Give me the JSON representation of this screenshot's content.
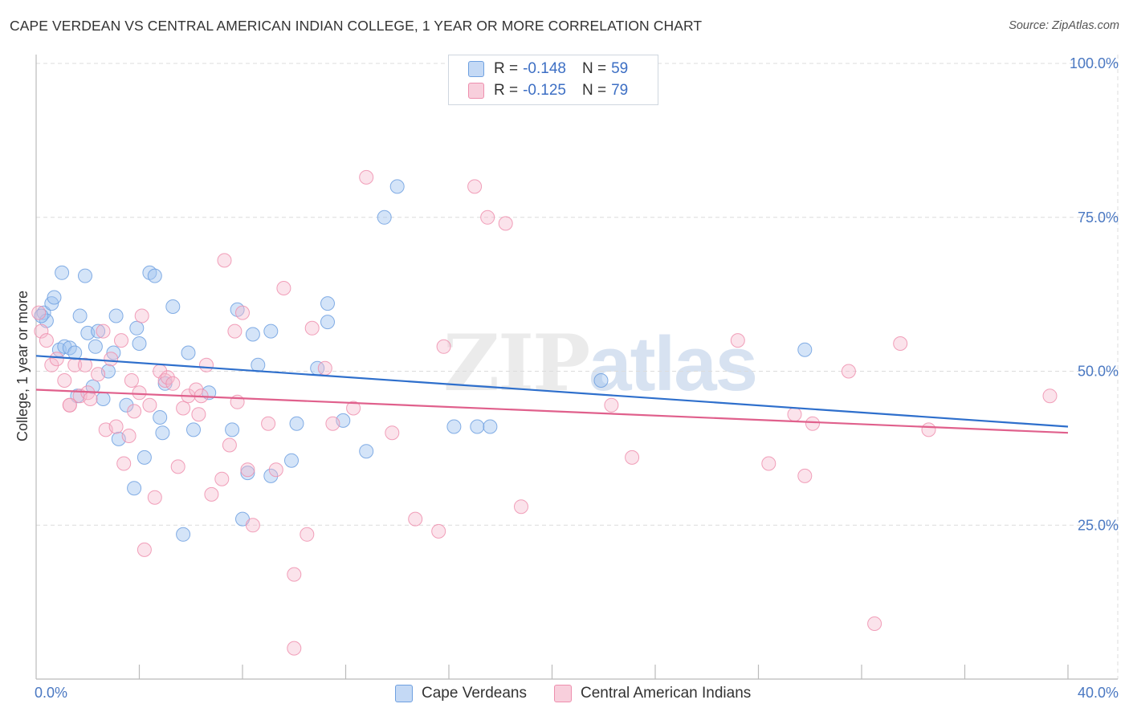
{
  "header": {
    "title": "CAPE VERDEAN VS CENTRAL AMERICAN INDIAN COLLEGE, 1 YEAR OR MORE CORRELATION CHART",
    "source": "Source: ZipAtlas.com"
  },
  "watermark": {
    "zip": "ZIP",
    "atlas": "atlas"
  },
  "legend": {
    "rows": [
      {
        "r_label": "R =",
        "r_value": "-0.148",
        "n_label": "N =",
        "n_value": "59",
        "color": "#6ea0e0"
      },
      {
        "r_label": "R =",
        "r_value": "-0.125",
        "n_label": "N =",
        "n_value": "79",
        "color": "#ee8fae"
      }
    ]
  },
  "bottom_legend": {
    "items": [
      {
        "label": "Cape Verdeans",
        "color": "#6ea0e0"
      },
      {
        "label": "Central American Indians",
        "color": "#ee8fae"
      }
    ]
  },
  "chart_data": {
    "type": "scatter",
    "title": "CAPE VERDEAN VS CENTRAL AMERICAN INDIAN COLLEGE, 1 YEAR OR MORE CORRELATION CHART",
    "xlabel": "",
    "ylabel": "College, 1 year or more",
    "xlim": [
      0,
      40
    ],
    "ylim": [
      0,
      100
    ],
    "x_tick_labels": {
      "left": "0.0%",
      "right": "40.0%"
    },
    "y_ticks": [
      {
        "value": 100,
        "label": "100.0%"
      },
      {
        "value": 75,
        "label": "75.0%"
      },
      {
        "value": 50,
        "label": "50.0%"
      },
      {
        "value": 25,
        "label": "25.0%"
      }
    ],
    "grid": true,
    "legend_position": "top-center",
    "series": [
      {
        "name": "Cape Verdeans",
        "color": "#6ea0e0",
        "r": -0.148,
        "n": 59,
        "trend": {
          "x": [
            0,
            40
          ],
          "y": [
            52.5,
            41.0
          ]
        },
        "points": [
          [
            0.3,
            59.5
          ],
          [
            0.4,
            58.2
          ],
          [
            0.6,
            61.0
          ],
          [
            0.7,
            62.0
          ],
          [
            0.9,
            53.5
          ],
          [
            1.0,
            66.0
          ],
          [
            1.1,
            54.0
          ],
          [
            1.3,
            53.8
          ],
          [
            1.5,
            53.0
          ],
          [
            1.6,
            46.0
          ],
          [
            1.7,
            59.0
          ],
          [
            1.9,
            65.5
          ],
          [
            2.0,
            56.2
          ],
          [
            2.2,
            47.5
          ],
          [
            2.3,
            54.0
          ],
          [
            2.4,
            56.5
          ],
          [
            2.6,
            45.5
          ],
          [
            2.8,
            50.0
          ],
          [
            3.0,
            53.0
          ],
          [
            3.1,
            59.0
          ],
          [
            3.2,
            39.0
          ],
          [
            3.5,
            44.5
          ],
          [
            3.8,
            31.0
          ],
          [
            3.9,
            57.0
          ],
          [
            4.0,
            54.5
          ],
          [
            4.2,
            36.0
          ],
          [
            4.4,
            66.0
          ],
          [
            4.6,
            65.5
          ],
          [
            4.8,
            42.5
          ],
          [
            4.9,
            40.0
          ],
          [
            5.0,
            48.0
          ],
          [
            5.3,
            60.5
          ],
          [
            5.7,
            23.5
          ],
          [
            5.9,
            53.0
          ],
          [
            6.1,
            40.5
          ],
          [
            6.7,
            46.5
          ],
          [
            7.6,
            40.5
          ],
          [
            7.8,
            60.0
          ],
          [
            8.0,
            26.0
          ],
          [
            8.2,
            33.5
          ],
          [
            8.4,
            56.0
          ],
          [
            8.6,
            51.0
          ],
          [
            9.1,
            56.5
          ],
          [
            9.1,
            33.0
          ],
          [
            9.9,
            35.5
          ],
          [
            10.1,
            41.5
          ],
          [
            10.9,
            50.5
          ],
          [
            11.3,
            58.0
          ],
          [
            11.3,
            61.0
          ],
          [
            11.9,
            42.0
          ],
          [
            12.8,
            37.0
          ],
          [
            13.5,
            75.0
          ],
          [
            14.0,
            80.0
          ],
          [
            16.2,
            41.0
          ],
          [
            17.1,
            41.0
          ],
          [
            17.6,
            41.0
          ],
          [
            21.9,
            48.5
          ],
          [
            29.8,
            53.5
          ],
          [
            0.2,
            59.0
          ]
        ]
      },
      {
        "name": "Central American Indians",
        "color": "#ee8fae",
        "r": -0.125,
        "n": 79,
        "trend": {
          "x": [
            0,
            40
          ],
          "y": [
            47.0,
            40.0
          ]
        },
        "points": [
          [
            0.1,
            59.5
          ],
          [
            0.2,
            56.5
          ],
          [
            0.4,
            55.0
          ],
          [
            0.6,
            51.0
          ],
          [
            0.8,
            52.0
          ],
          [
            1.1,
            48.5
          ],
          [
            1.3,
            44.5
          ],
          [
            1.5,
            51.0
          ],
          [
            1.7,
            46.0
          ],
          [
            1.9,
            51.0
          ],
          [
            2.0,
            46.5
          ],
          [
            2.1,
            45.5
          ],
          [
            2.4,
            49.5
          ],
          [
            2.6,
            56.5
          ],
          [
            2.7,
            40.5
          ],
          [
            2.9,
            52.0
          ],
          [
            3.1,
            41.0
          ],
          [
            3.3,
            55.0
          ],
          [
            3.4,
            35.0
          ],
          [
            3.7,
            48.5
          ],
          [
            3.8,
            43.5
          ],
          [
            4.0,
            46.5
          ],
          [
            4.1,
            59.0
          ],
          [
            4.2,
            21.0
          ],
          [
            4.4,
            44.5
          ],
          [
            4.6,
            29.5
          ],
          [
            4.8,
            50.0
          ],
          [
            5.0,
            48.5
          ],
          [
            5.1,
            49.0
          ],
          [
            5.3,
            48.0
          ],
          [
            5.5,
            34.5
          ],
          [
            5.7,
            44.0
          ],
          [
            5.9,
            46.0
          ],
          [
            6.2,
            47.0
          ],
          [
            6.3,
            43.0
          ],
          [
            6.4,
            46.0
          ],
          [
            6.6,
            51.0
          ],
          [
            6.8,
            30.0
          ],
          [
            7.2,
            32.5
          ],
          [
            7.3,
            68.0
          ],
          [
            7.5,
            38.0
          ],
          [
            7.7,
            56.5
          ],
          [
            7.8,
            45.0
          ],
          [
            8.0,
            59.5
          ],
          [
            8.2,
            34.0
          ],
          [
            8.4,
            25.0
          ],
          [
            9.0,
            41.5
          ],
          [
            9.3,
            34.0
          ],
          [
            9.6,
            63.5
          ],
          [
            10.0,
            17.0
          ],
          [
            10.0,
            5.0
          ],
          [
            10.5,
            23.5
          ],
          [
            10.7,
            57.0
          ],
          [
            11.2,
            50.5
          ],
          [
            11.5,
            41.5
          ],
          [
            12.3,
            44.0
          ],
          [
            12.8,
            81.5
          ],
          [
            13.8,
            40.0
          ],
          [
            14.7,
            26.0
          ],
          [
            15.6,
            24.0
          ],
          [
            15.8,
            54.0
          ],
          [
            17.0,
            80.0
          ],
          [
            17.5,
            75.0
          ],
          [
            18.2,
            74.0
          ],
          [
            18.8,
            28.0
          ],
          [
            22.3,
            44.5
          ],
          [
            23.1,
            36.0
          ],
          [
            27.2,
            55.0
          ],
          [
            28.4,
            35.0
          ],
          [
            29.4,
            43.0
          ],
          [
            29.8,
            33.0
          ],
          [
            30.1,
            41.5
          ],
          [
            31.5,
            50.0
          ],
          [
            32.5,
            9.0
          ],
          [
            33.5,
            54.5
          ],
          [
            34.6,
            40.5
          ],
          [
            39.3,
            46.0
          ],
          [
            1.3,
            44.5
          ],
          [
            3.6,
            39.5
          ]
        ]
      }
    ]
  }
}
